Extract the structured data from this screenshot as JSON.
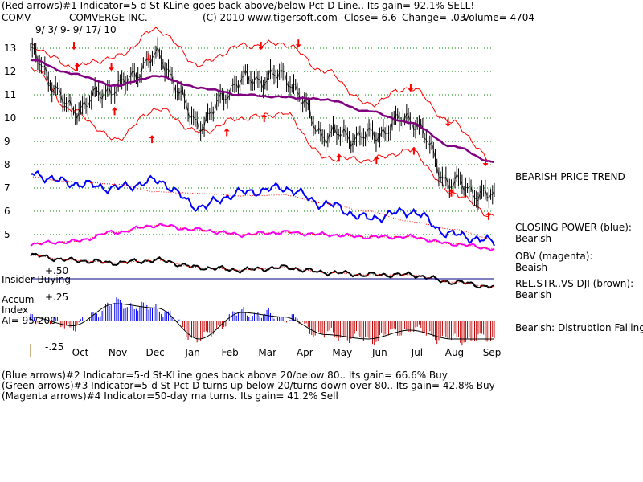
{
  "header": {
    "line1": "(Red arrows)#1 Indicator=5-d St-KLine goes back above/below Pct-D Line.. Its gain= 92.1% SELL!",
    "symbol": "COMV",
    "company": "COMVERGE INC.",
    "copyright": "(C) 2010 www.tigersoft.com",
    "close": "Close=  6.6",
    "change": "Change=-.03",
    "volume": "Volume= 4704",
    "date": "9/ 3/ 9-  9/ 17/ 10"
  },
  "right_panel": {
    "price_trend": "BEARISH PRICE TREND",
    "closing_power": "CLOSING POWER (blue):",
    "closing_power_value": "Bearish",
    "obv": "OBV (magenta):",
    "obv_value": "Beaish",
    "relstr": "REL.STR..VS DJI (brown):",
    "relstr_value": "Bearish",
    "accum": "Bearish:  Distrubtion Falling."
  },
  "left_panel": {
    "insider": "Insider Buying",
    "accum_label1": "Accum",
    "accum_label2": "Index",
    "ai_value": "AI= 95/200",
    "plus50": "+.50",
    "plus25": "+.25",
    "minus25": "-.25"
  },
  "footer": {
    "line1": "(Blue arrows)#2 Indicator=5-d St-KLine goes back above 20/below 80.. Its gain= 66.6% Buy",
    "line2": "(Green arrows)#3 Indicator=5-d St-Pct-D turns up below 20/turns down over 80.. Its gain= 42.8% Buy",
    "line3": "(Magenta arrows)#4 Indicator=50-day ma turns. Its gain= 41.2% Sell"
  },
  "colors": {
    "price": "#000000",
    "bands": "#ff0000",
    "ma": "#800080",
    "closing_power": "#0000ff",
    "obv": "#ff00ff",
    "relstr": "#000000",
    "accum_pos": "#0000ff",
    "accum_neg": "#c00000",
    "grid": "#008000",
    "insider_line": "#000080"
  },
  "chart_data": {
    "type": "line",
    "x_months": [
      "Oct",
      "Nov",
      "Dec",
      "Jan",
      "Feb",
      "Mar",
      "Apr",
      "May",
      "Jun",
      "Jul",
      "Aug",
      "Sep"
    ],
    "y_ticks": [
      13,
      12,
      11,
      10,
      9,
      8,
      7,
      6,
      5
    ],
    "ylim": [
      4.5,
      13.5
    ],
    "price_close_monthly": [
      12.7,
      10.4,
      11.3,
      12.6,
      9.8,
      11.6,
      11.8,
      9.3,
      9.2,
      10.0,
      7.2,
      6.6
    ],
    "ma50_monthly": [
      12.5,
      11.9,
      11.4,
      11.8,
      11.3,
      11.0,
      10.9,
      10.8,
      10.3,
      9.8,
      8.8,
      8.1
    ],
    "upper_band_monthly": [
      13.1,
      12.2,
      12.6,
      13.8,
      12.3,
      13.1,
      13.2,
      12.0,
      10.6,
      11.3,
      9.8,
      8.1
    ],
    "lower_band_monthly": [
      12.2,
      10.3,
      9.1,
      10.4,
      9.4,
      10.0,
      10.2,
      8.3,
      8.2,
      8.6,
      6.8,
      5.8
    ],
    "closing_power_monthly": [
      7.6,
      7.2,
      7.0,
      7.3,
      6.2,
      6.8,
      7.0,
      6.3,
      5.7,
      6.0,
      5.0,
      4.7
    ],
    "obv_monthly": [
      4.6,
      4.7,
      5.1,
      5.4,
      5.2,
      5.0,
      5.1,
      5.0,
      4.9,
      4.9,
      4.6,
      4.4
    ],
    "accum_index_monthly": [
      0.05,
      -0.05,
      0.2,
      0.15,
      -0.2,
      0.1,
      0.05,
      -0.15,
      -0.2,
      -0.1,
      -0.2,
      -0.2
    ],
    "sell_arrow_months": [
      "Oct",
      "Nov",
      "Dec",
      "Mar",
      "Apr",
      "Jul",
      "Aug",
      "Sep"
    ],
    "buy_arrow_months": [
      "Oct",
      "Nov",
      "Dec",
      "Feb",
      "Mar",
      "May",
      "Jun",
      "Jul",
      "Aug",
      "Sep"
    ]
  }
}
